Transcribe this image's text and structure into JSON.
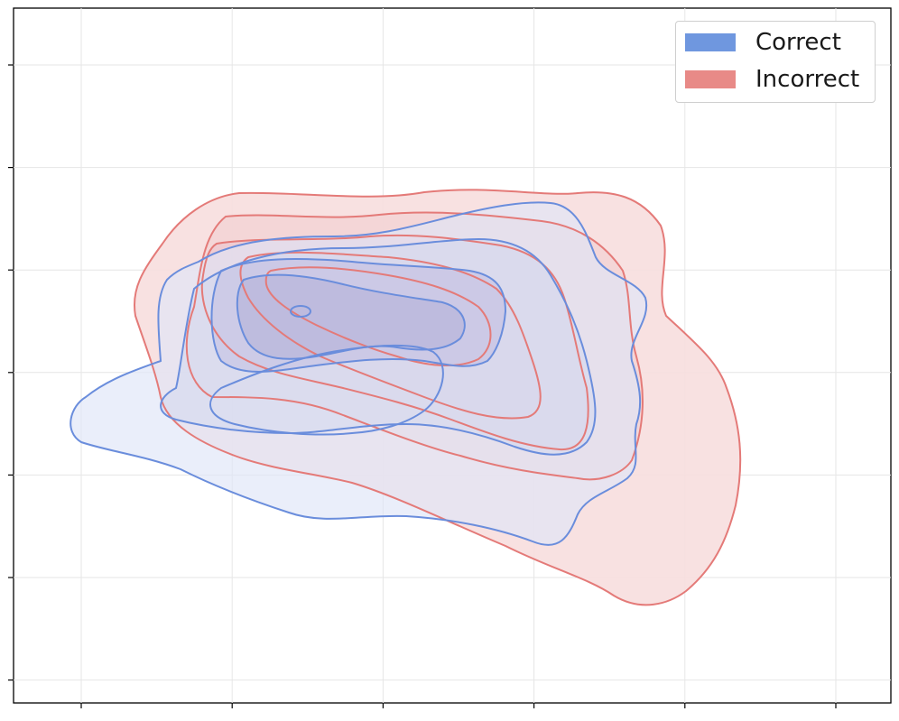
{
  "chart_data": {
    "type": "density-contour",
    "title": "",
    "xlabel": "",
    "ylabel": "",
    "x_ticks": 6,
    "y_ticks": 7,
    "grid": true,
    "legend_position": "top-right",
    "series": [
      {
        "name": "Correct",
        "color": "#6a8ddc",
        "fill": "#dfe6f8",
        "contour_levels": 6
      },
      {
        "name": "Incorrect",
        "color": "#e47a78",
        "fill": "#f6dcdc",
        "contour_levels": 5
      }
    ]
  },
  "legend": {
    "items": [
      {
        "label": "Correct",
        "color": "#6f97df"
      },
      {
        "label": "Incorrect",
        "color": "#e88a87"
      }
    ]
  }
}
